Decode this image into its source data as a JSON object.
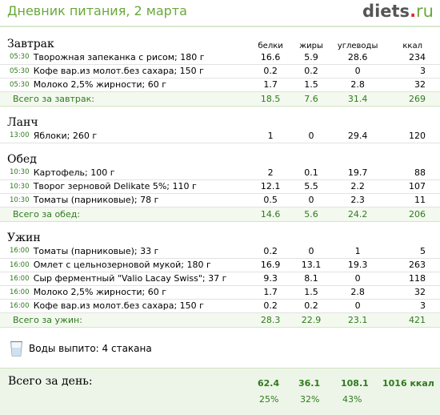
{
  "header": {
    "title": "Дневник питания, 2 марта",
    "brand_main": "diets",
    "brand_dot": ".",
    "brand_tld": "ru"
  },
  "columns": {
    "protein": "белки",
    "fat": "жиры",
    "carbs": "углеводы",
    "kcal": "ккал"
  },
  "meals": [
    {
      "title": "Завтрак",
      "items": [
        {
          "time": "05:30",
          "name": "Творожная запеканка с рисом; 180 г",
          "b": "16.6",
          "f": "5.9",
          "c": "28.6",
          "k": "234"
        },
        {
          "time": "05:30",
          "name": "Кофе вар.из молот.без сахара; 150 г",
          "b": "0.2",
          "f": "0.2",
          "c": "0",
          "k": "3"
        },
        {
          "time": "05:30",
          "name": "Молоко 2,5% жирности; 60 г",
          "b": "1.7",
          "f": "1.5",
          "c": "2.8",
          "k": "32"
        }
      ],
      "total": {
        "label": "Всего за завтрак:",
        "b": "18.5",
        "f": "7.6",
        "c": "31.4",
        "k": "269"
      }
    },
    {
      "title": "Ланч",
      "items": [
        {
          "time": "13:00",
          "name": "Яблоки; 260 г",
          "b": "1",
          "f": "0",
          "c": "29.4",
          "k": "120"
        }
      ]
    },
    {
      "title": "Обед",
      "items": [
        {
          "time": "10:30",
          "name": "Картофель; 100 г",
          "b": "2",
          "f": "0.1",
          "c": "19.7",
          "k": "88"
        },
        {
          "time": "10:30",
          "name": "Творог зерновой Delikate 5%; 110 г",
          "b": "12.1",
          "f": "5.5",
          "c": "2.2",
          "k": "107"
        },
        {
          "time": "10:30",
          "name": "Томаты (парниковые); 78 г",
          "b": "0.5",
          "f": "0",
          "c": "2.3",
          "k": "11"
        }
      ],
      "total": {
        "label": "Всего за обед:",
        "b": "14.6",
        "f": "5.6",
        "c": "24.2",
        "k": "206"
      }
    },
    {
      "title": "Ужин",
      "items": [
        {
          "time": "16:00",
          "name": "Томаты (парниковые); 33 г",
          "b": "0.2",
          "f": "0",
          "c": "1",
          "k": "5"
        },
        {
          "time": "16:00",
          "name": "Омлет с цельнозерновой мукой; 180 г",
          "b": "16.9",
          "f": "13.1",
          "c": "19.3",
          "k": "263"
        },
        {
          "time": "16:00",
          "name": "Сыр ферментный \"Valio Lacay Swiss\"; 37 г",
          "b": "9.3",
          "f": "8.1",
          "c": "0",
          "k": "118"
        },
        {
          "time": "16:00",
          "name": "Молоко 2,5% жирности; 60 г",
          "b": "1.7",
          "f": "1.5",
          "c": "2.8",
          "k": "32"
        },
        {
          "time": "16:00",
          "name": "Кофе вар.из молот.без сахара; 150 г",
          "b": "0.2",
          "f": "0.2",
          "c": "0",
          "k": "3"
        }
      ],
      "total": {
        "label": "Всего за ужин:",
        "b": "28.3",
        "f": "22.9",
        "c": "23.1",
        "k": "421"
      }
    }
  ],
  "water": {
    "icon": "glass-icon",
    "text": "Воды выпито: 4 стакана"
  },
  "day_total": {
    "label": "Всего за день:",
    "b": "62.4",
    "f": "36.1",
    "c": "108.1",
    "k": "1016 ккал",
    "b_pct": "25%",
    "f_pct": "32%",
    "c_pct": "43%"
  },
  "colors": {
    "accent": "#6aa83a",
    "green_text": "#2f7a1e",
    "total_bg": "#f3f9ef",
    "brand_dot": "#e32a2a"
  }
}
